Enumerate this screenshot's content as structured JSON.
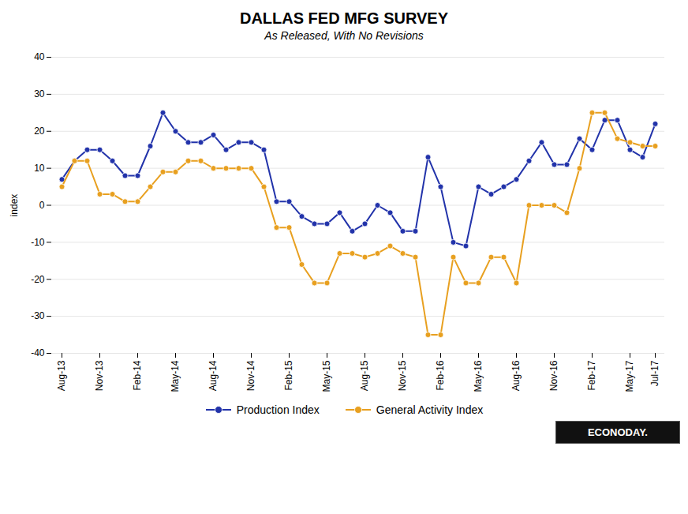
{
  "chart_data": {
    "type": "line",
    "title": "DALLAS FED MFG SURVEY",
    "subtitle": "As Released, With No Revisions",
    "y_label": "index",
    "categories": [
      "Aug-13",
      null,
      null,
      "Nov-13",
      null,
      null,
      "Feb-14",
      null,
      null,
      "May-14",
      null,
      null,
      "Aug-14",
      null,
      null,
      "Nov-14",
      null,
      null,
      "Feb-15",
      null,
      null,
      "May-15",
      null,
      null,
      "Aug-15",
      null,
      null,
      "Nov-15",
      null,
      null,
      "Feb-16",
      null,
      null,
      "May-16",
      null,
      null,
      "Aug-16",
      null,
      null,
      "Nov-16",
      null,
      null,
      "Feb-17",
      null,
      null,
      "May-17",
      null,
      "Jul-17"
    ],
    "series": [
      {
        "name": "Production Index",
        "color": "#2233aa",
        "marker": "circle",
        "values": [
          7,
          12,
          15,
          15,
          12,
          8,
          8,
          16,
          25,
          20,
          17,
          17,
          19,
          15,
          17,
          17,
          15,
          1,
          1,
          -3,
          -5,
          -5,
          -2,
          -7,
          -5,
          0,
          -2,
          -7,
          -7,
          13,
          5,
          -10,
          -11,
          5,
          3,
          5,
          7,
          12,
          17,
          11,
          11,
          18,
          15,
          23,
          23,
          15,
          13,
          22
        ]
      },
      {
        "name": "General Activity Index",
        "color": "#e8a020",
        "marker": "circle",
        "values": [
          5,
          12,
          12,
          3,
          3,
          1,
          1,
          5,
          9,
          9,
          12,
          12,
          10,
          10,
          10,
          10,
          5,
          -6,
          -6,
          -16,
          -21,
          -21,
          -13,
          -13,
          -14,
          -13,
          -11,
          -13,
          -14,
          -35,
          -35,
          -14,
          -21,
          -21,
          -14,
          -14,
          -21,
          0,
          0,
          0,
          -2,
          10,
          25,
          25,
          18,
          17,
          16,
          16
        ]
      }
    ],
    "ylim": [
      -40,
      40
    ],
    "yticks": [
      -40,
      -30,
      -20,
      -10,
      0,
      10,
      20,
      30,
      40
    ],
    "grid": true,
    "legend": "bottom",
    "annotations": [
      "ECONODAY."
    ]
  }
}
